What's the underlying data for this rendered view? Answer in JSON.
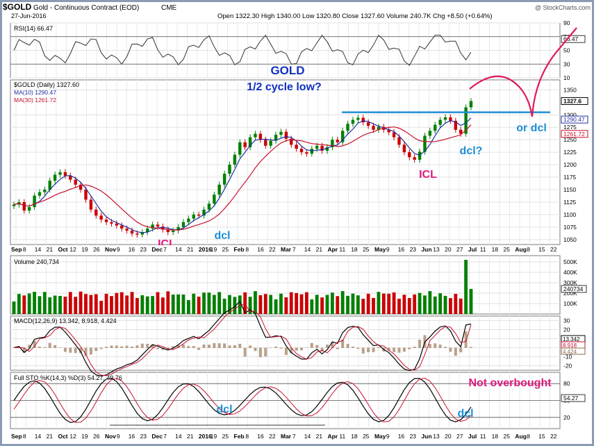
{
  "header": {
    "symbol": "$GOLD",
    "name": "Gold - Continuous Contract (EOD)",
    "exchange": "CME",
    "date": "27-Jun-2016",
    "ohlc": "Open 1322.30  High 1340.00  Low 1320.80  Close 1327.60  Volume 240.7K  Chg +8.50 (+0.64%)",
    "watermark": "@ StockCharts.com"
  },
  "colors": {
    "price_up": "#008000",
    "price_down": "#cc0000",
    "ma10": "#1f2fa0",
    "ma30": "#c8102e",
    "annotation_blue": "#1e8fd6",
    "annotation_pink": "#e0197d",
    "title_blue": "#1030c0",
    "cycle_line": "#e0195a"
  },
  "annotations": {
    "title": "GOLD",
    "subtitle": "1/2 cycle low?",
    "icl_1": "ICL",
    "icl_2": "ICL",
    "dcl_1": "dcl",
    "dcl_q": "dcl?",
    "or_dcl": "or dcl",
    "sto_dcl_1": "dcl",
    "sto_dcl_2": "dcl",
    "not_overbought": "Not overbought"
  },
  "chart_data": [
    {
      "type": "line",
      "panel": "RSI",
      "title": "RSI(14) 66.47",
      "last_value": 66.47,
      "ylim": [
        10,
        90
      ],
      "yticks": [
        10,
        30,
        50,
        70,
        90
      ],
      "reference_lines": [
        30,
        70
      ]
    },
    {
      "type": "candlestick",
      "panel": "Price",
      "title": "$GOLD (Daily) 1327.60",
      "legend": [
        "MA(10) 1290.47",
        "MA(30) 1261.72"
      ],
      "ylim": [
        1040,
        1370
      ],
      "yticks": [
        1050,
        1075,
        1100,
        1125,
        1150,
        1175,
        1200,
        1225,
        1250,
        1275,
        1300,
        1350
      ],
      "last_close": 1327.6,
      "ma10_last": 1290.47,
      "ma30_last": 1261.72,
      "resistance_line": 1305,
      "close_series": [
        1120,
        1125,
        1108,
        1115,
        1138,
        1145,
        1150,
        1168,
        1180,
        1185,
        1178,
        1170,
        1160,
        1150,
        1130,
        1110,
        1098,
        1090,
        1085,
        1082,
        1078,
        1072,
        1068,
        1062,
        1060,
        1065,
        1072,
        1080,
        1076,
        1070,
        1065,
        1068,
        1075,
        1085,
        1092,
        1100,
        1098,
        1110,
        1122,
        1140,
        1160,
        1182,
        1200,
        1220,
        1245,
        1235,
        1255,
        1262,
        1250,
        1238,
        1248,
        1260,
        1266,
        1252,
        1240,
        1232,
        1225,
        1222,
        1232,
        1238,
        1228,
        1235,
        1250,
        1245,
        1268,
        1282,
        1290,
        1294,
        1285,
        1278,
        1270,
        1276,
        1270,
        1265,
        1255,
        1240,
        1225,
        1215,
        1210,
        1226,
        1258,
        1268,
        1280,
        1290,
        1295,
        1288,
        1270,
        1262,
        1315,
        1327.6
      ],
      "x_tick_labels": [
        "Sep",
        "8",
        "14",
        "21",
        "Oct",
        "12",
        "19",
        "26",
        "Nov",
        "9",
        "16",
        "23",
        "Dec",
        "7",
        "14",
        "21",
        "2016",
        "19",
        "25",
        "Feb",
        "8",
        "16",
        "22",
        "Mar",
        "7",
        "14",
        "21",
        "Apr",
        "11",
        "18",
        "25",
        "May",
        "9",
        "16",
        "23",
        "Jun",
        "13",
        "20",
        "27",
        "Jul",
        "11",
        "18",
        "25",
        "Aug",
        "8",
        "15",
        "22"
      ]
    },
    {
      "type": "bar",
      "panel": "Volume",
      "title": "Volume 240,734",
      "last_value": 240734,
      "yticks": [
        "100K",
        "200K",
        "300K",
        "400K",
        "500K"
      ],
      "right_label": "240734"
    },
    {
      "type": "line",
      "panel": "MACD",
      "title": "MACD(12,26,9) 13.342, 8.918, 4.424",
      "macd": 13.342,
      "signal": 8.918,
      "histogram": 4.424,
      "ylim": [
        -25,
        35
      ],
      "yticks": [
        -20,
        -10,
        0,
        10,
        20,
        30
      ]
    },
    {
      "type": "line",
      "panel": "Stochastic",
      "title": "Full STO %K(14,3) %D(3) 54.27, 49.76",
      "k": 54.27,
      "d": 49.76,
      "ylim": [
        0,
        100
      ],
      "yticks": [
        20,
        50,
        80
      ]
    }
  ]
}
